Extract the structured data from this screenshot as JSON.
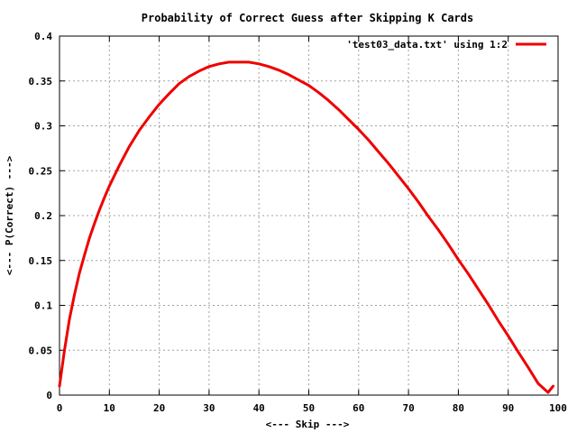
{
  "chart_data": {
    "type": "line",
    "title": "Probability of Correct Guess after Skipping K Cards",
    "xlabel": "<--- Skip --->",
    "ylabel": "<--- P(Correct) --->",
    "xlim": [
      0,
      100
    ],
    "ylim": [
      0,
      0.4
    ],
    "xticks": [
      0,
      10,
      20,
      30,
      40,
      50,
      60,
      70,
      80,
      90,
      100
    ],
    "yticks": [
      0,
      0.05,
      0.1,
      0.15,
      0.2,
      0.25,
      0.3,
      0.35,
      0.4
    ],
    "xtick_labels": [
      "0",
      "10",
      "20",
      "30",
      "40",
      "50",
      "60",
      "70",
      "80",
      "90",
      "100"
    ],
    "ytick_labels": [
      "0",
      "0.05",
      "0.1",
      "0.15",
      "0.2",
      "0.25",
      "0.3",
      "0.35",
      "0.4"
    ],
    "grid": true,
    "legend_position": "top-right",
    "series": [
      {
        "name": "'test03_data.txt' using 1:2",
        "color": "#ee0000",
        "x": [
          0,
          1,
          2,
          3,
          4,
          5,
          6,
          7,
          8,
          9,
          10,
          12,
          14,
          16,
          18,
          20,
          22,
          24,
          26,
          28,
          30,
          32,
          34,
          36,
          38,
          40,
          42,
          44,
          46,
          48,
          50,
          52,
          54,
          56,
          58,
          60,
          62,
          64,
          66,
          68,
          70,
          72,
          74,
          76,
          78,
          80,
          82,
          84,
          86,
          88,
          90,
          92,
          94,
          96,
          98,
          99
        ],
        "y": [
          0.01,
          0.05,
          0.085,
          0.112,
          0.136,
          0.156,
          0.175,
          0.191,
          0.206,
          0.22,
          0.233,
          0.256,
          0.277,
          0.295,
          0.31,
          0.324,
          0.336,
          0.347,
          0.355,
          0.361,
          0.366,
          0.369,
          0.371,
          0.371,
          0.371,
          0.369,
          0.366,
          0.362,
          0.357,
          0.351,
          0.345,
          0.337,
          0.328,
          0.318,
          0.307,
          0.296,
          0.284,
          0.271,
          0.258,
          0.244,
          0.23,
          0.215,
          0.199,
          0.184,
          0.168,
          0.151,
          0.135,
          0.118,
          0.101,
          0.083,
          0.066,
          0.048,
          0.031,
          0.013,
          0.003,
          0.01
        ]
      }
    ]
  }
}
